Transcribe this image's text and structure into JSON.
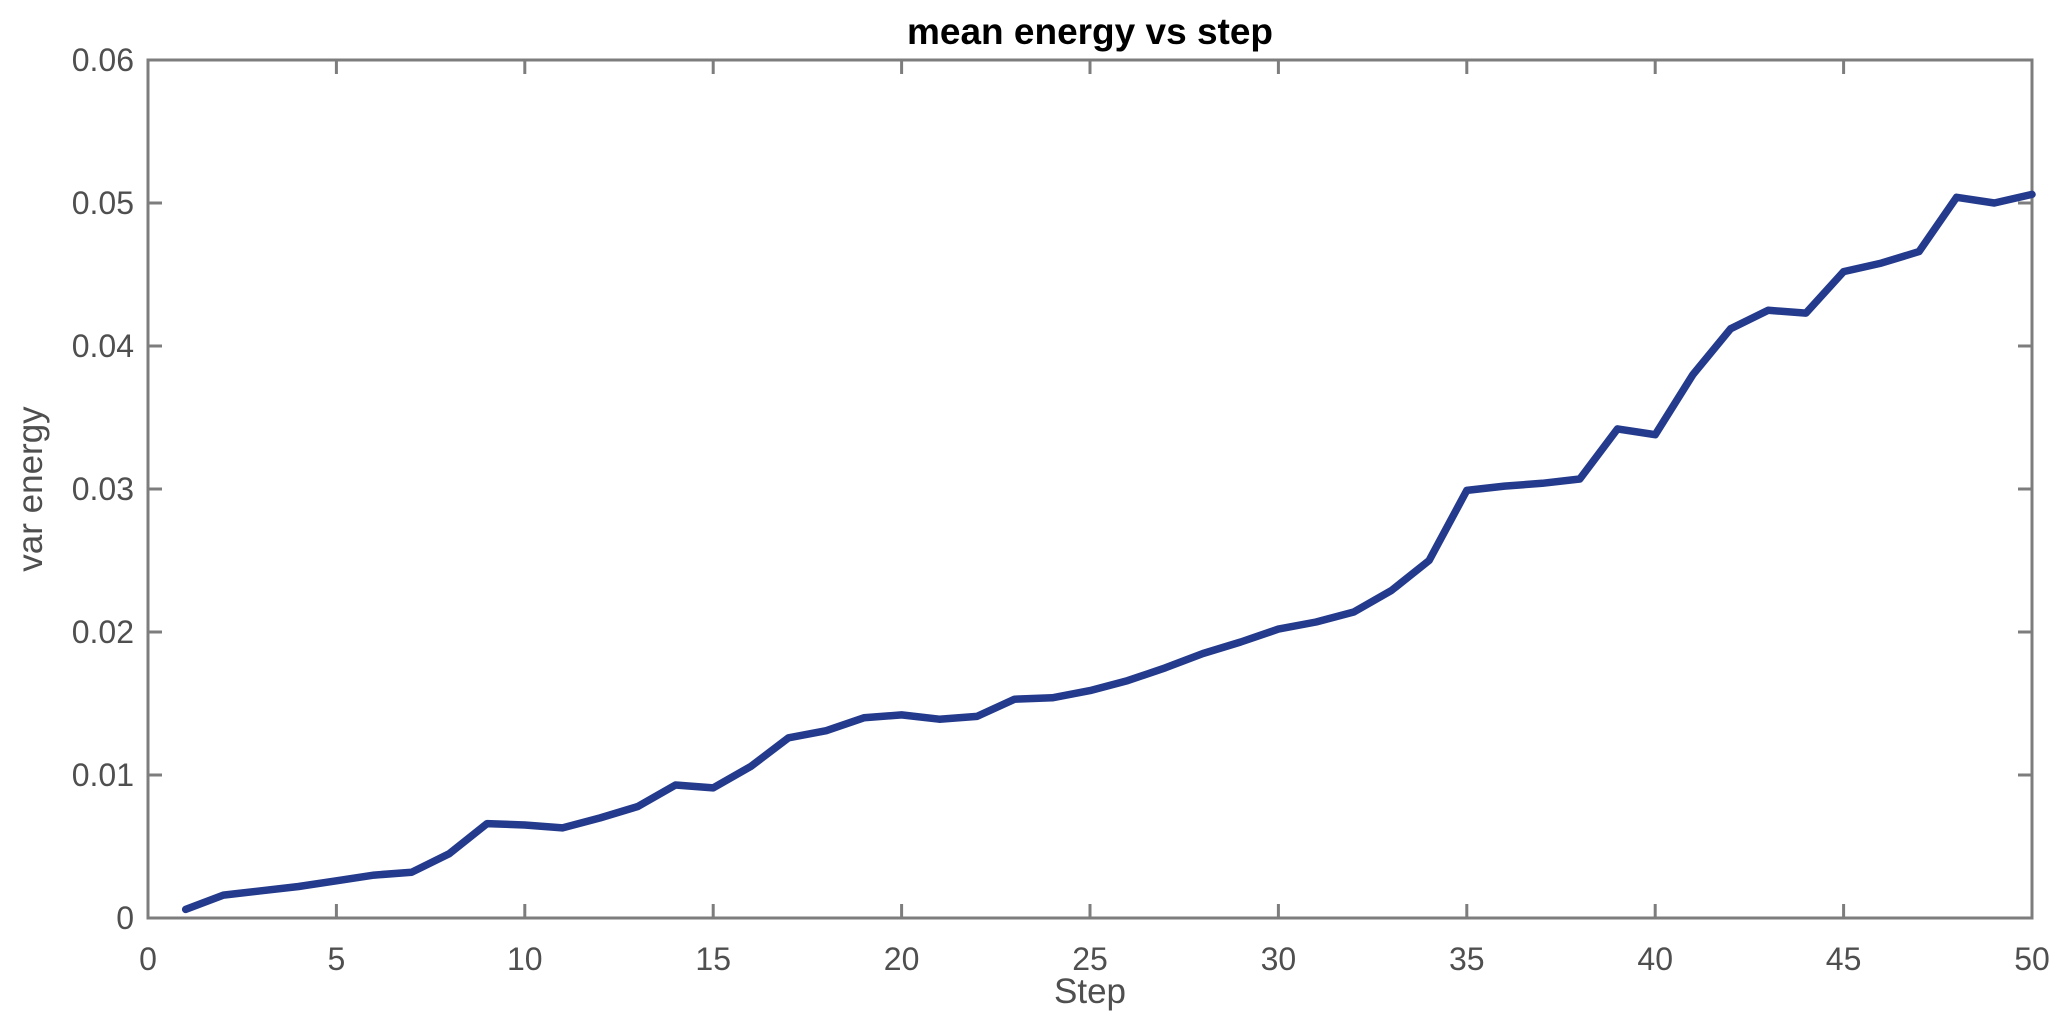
{
  "page": {
    "background": "#ffffff"
  },
  "chart_data": {
    "type": "line",
    "title": "mean energy vs step",
    "xlabel": "Step",
    "ylabel": "var energy",
    "xlim": [
      0,
      50
    ],
    "ylim": [
      0,
      0.06
    ],
    "x_ticks": [
      0,
      5,
      10,
      15,
      20,
      25,
      30,
      35,
      40,
      45,
      50
    ],
    "x_tick_labels": [
      "0",
      "5",
      "10",
      "15",
      "20",
      "25",
      "30",
      "35",
      "40",
      "45",
      "50"
    ],
    "y_ticks": [
      0,
      0.01,
      0.02,
      0.03,
      0.04,
      0.05,
      0.06
    ],
    "y_tick_labels": [
      "0",
      "0.01",
      "0.02",
      "0.03",
      "0.04",
      "0.05",
      "0.06"
    ],
    "grid": "off",
    "legend": "none",
    "box": "on",
    "tick_direction": "in",
    "marker": "none",
    "colors": {
      "line": "#243a8c",
      "axis": "#7d7d7d",
      "tick_label": "#4f4f4f",
      "title": "#000000",
      "background": "#ffffff"
    },
    "series": [
      {
        "name": "var energy",
        "color": "#243a8c",
        "x": [
          1,
          2,
          3,
          4,
          5,
          6,
          7,
          8,
          9,
          10,
          11,
          12,
          13,
          14,
          15,
          16,
          17,
          18,
          19,
          20,
          21,
          22,
          23,
          24,
          25,
          26,
          27,
          28,
          29,
          30,
          31,
          32,
          33,
          34,
          35,
          36,
          37,
          38,
          39,
          40,
          41,
          42,
          43,
          44,
          45,
          46,
          47,
          48,
          49,
          50
        ],
        "y": [
          0.0006,
          0.0016,
          0.0019,
          0.0022,
          0.0026,
          0.003,
          0.0032,
          0.0045,
          0.0066,
          0.0065,
          0.0063,
          0.007,
          0.0078,
          0.0093,
          0.0091,
          0.0106,
          0.0126,
          0.0131,
          0.014,
          0.0142,
          0.0139,
          0.0141,
          0.0153,
          0.0154,
          0.0159,
          0.0166,
          0.0175,
          0.0185,
          0.0193,
          0.0202,
          0.0207,
          0.0214,
          0.0229,
          0.025,
          0.0299,
          0.0302,
          0.0304,
          0.0307,
          0.0342,
          0.0338,
          0.038,
          0.0412,
          0.0425,
          0.0423,
          0.0452,
          0.0458,
          0.0466,
          0.0504,
          0.05,
          0.0506
        ]
      }
    ]
  }
}
